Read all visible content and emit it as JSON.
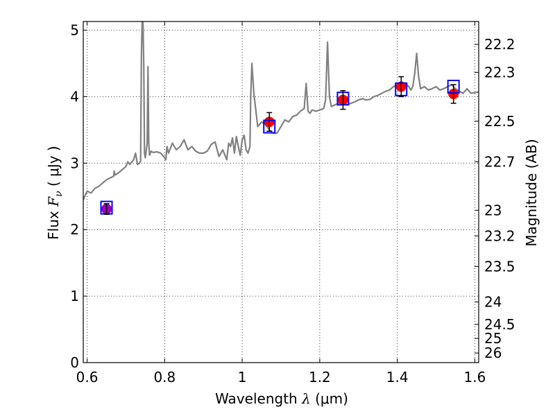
{
  "chart_data": {
    "type": "scatter",
    "xlabel": "Wavelength",
    "xlabel_symbol": "λ",
    "xlabel_unit": "(μm)",
    "ylabel": "Flux",
    "ylabel_symbol": "F",
    "ylabel_subscript": "ν",
    "ylabel_unit": "( μJy )",
    "y2label": "Magnitude (AB)",
    "xlim": [
      0.59,
      1.61
    ],
    "ylim": [
      0,
      5.13
    ],
    "grid": true,
    "x_ticks": [
      0.6,
      0.8,
      1.0,
      1.2,
      1.4,
      1.6
    ],
    "x_tick_labels": [
      "0.6",
      "0.8",
      "1",
      "1.2",
      "1.4",
      "1.6"
    ],
    "y_ticks": [
      0,
      1,
      2,
      3,
      4,
      5
    ],
    "y_tick_labels": [
      "0",
      "1",
      "2",
      "3",
      "4",
      "5"
    ],
    "y2_ticks": [
      22.2,
      22.3,
      22.5,
      22.7,
      23,
      23.2,
      23.5,
      24,
      24.5,
      25,
      26
    ],
    "y2_tick_labels": [
      "22.2",
      "22.3",
      "22.5",
      "22.7",
      "23",
      "23.2",
      "23.5",
      "24",
      "24.5",
      "25",
      "26"
    ],
    "colors": {
      "model": "#808080",
      "observed": "#ff0000",
      "observed_first": "#9b00c0",
      "model_photometry": "#0000ff",
      "errorbar": "#000000"
    },
    "series": [
      {
        "kind": "model_spectrum",
        "x": [
          0.59,
          0.6,
          0.61,
          0.62,
          0.63,
          0.64,
          0.65,
          0.66,
          0.668,
          0.67,
          0.672,
          0.68,
          0.69,
          0.7,
          0.705,
          0.71,
          0.72,
          0.725,
          0.73,
          0.735,
          0.738,
          0.74,
          0.742,
          0.744,
          0.746,
          0.748,
          0.75,
          0.755,
          0.757,
          0.759,
          0.761,
          0.765,
          0.77,
          0.78,
          0.79,
          0.8,
          0.803,
          0.806,
          0.81,
          0.82,
          0.83,
          0.84,
          0.85,
          0.86,
          0.87,
          0.88,
          0.89,
          0.9,
          0.91,
          0.92,
          0.93,
          0.94,
          0.95,
          0.96,
          0.965,
          0.97,
          0.975,
          0.98,
          0.985,
          0.99,
          0.995,
          1.0,
          1.005,
          1.01,
          1.015,
          1.02,
          1.022,
          1.025,
          1.03,
          1.04,
          1.05,
          1.06,
          1.07,
          1.08,
          1.09,
          1.1,
          1.11,
          1.12,
          1.13,
          1.14,
          1.15,
          1.16,
          1.165,
          1.17,
          1.175,
          1.18,
          1.19,
          1.2,
          1.21,
          1.215,
          1.22,
          1.225,
          1.23,
          1.24,
          1.25,
          1.26,
          1.27,
          1.28,
          1.29,
          1.3,
          1.31,
          1.32,
          1.33,
          1.34,
          1.35,
          1.36,
          1.37,
          1.38,
          1.39,
          1.4,
          1.41,
          1.42,
          1.43,
          1.435,
          1.44,
          1.445,
          1.45,
          1.455,
          1.46,
          1.47,
          1.48,
          1.49,
          1.5,
          1.51,
          1.52,
          1.53,
          1.54,
          1.55,
          1.56,
          1.57,
          1.58,
          1.59,
          1.6,
          1.61
        ],
        "y": [
          2.45,
          2.58,
          2.55,
          2.62,
          2.65,
          2.7,
          2.75,
          2.78,
          2.8,
          2.88,
          2.82,
          2.85,
          2.9,
          2.95,
          3.02,
          2.98,
          3.05,
          3.15,
          2.98,
          3.0,
          3.03,
          4.6,
          5.13,
          5.13,
          4.5,
          3.15,
          3.08,
          3.3,
          4.45,
          3.3,
          3.12,
          3.18,
          3.16,
          3.17,
          3.15,
          3.08,
          3.05,
          3.25,
          3.15,
          3.3,
          3.2,
          3.25,
          3.35,
          3.2,
          3.25,
          3.18,
          3.15,
          3.15,
          3.18,
          3.28,
          3.32,
          3.1,
          3.2,
          3.05,
          3.3,
          3.25,
          3.38,
          3.15,
          3.4,
          3.25,
          3.12,
          3.35,
          3.42,
          3.2,
          3.15,
          3.25,
          4.0,
          4.5,
          4.05,
          3.55,
          3.62,
          3.58,
          3.5,
          3.45,
          3.45,
          3.55,
          3.65,
          3.62,
          3.7,
          3.72,
          3.78,
          3.82,
          4.2,
          3.78,
          3.75,
          3.8,
          3.78,
          3.8,
          3.82,
          3.95,
          4.82,
          4.0,
          3.85,
          3.88,
          3.9,
          3.92,
          3.88,
          3.9,
          3.92,
          3.95,
          3.97,
          3.95,
          3.96,
          4.0,
          4.02,
          4.05,
          4.08,
          4.1,
          4.15,
          4.18,
          4.22,
          4.2,
          4.15,
          4.1,
          4.15,
          4.35,
          4.65,
          4.3,
          4.12,
          4.15,
          4.1,
          4.12,
          4.15,
          4.1,
          4.12,
          4.15,
          4.18,
          4.12,
          4.08,
          4.05,
          4.12,
          4.05,
          4.06,
          4.07
        ]
      },
      {
        "kind": "observed_photometry",
        "x": [
          0.65,
          1.07,
          1.26,
          1.41,
          1.545
        ],
        "y": [
          2.31,
          3.62,
          3.95,
          4.15,
          4.04
        ],
        "yerr": [
          0.08,
          0.14,
          0.14,
          0.15,
          0.14
        ]
      },
      {
        "kind": "model_photometry",
        "x": [
          0.65,
          1.07,
          1.26,
          1.41,
          1.545
        ],
        "y": [
          2.33,
          3.55,
          3.97,
          4.11,
          4.15
        ]
      }
    ]
  }
}
